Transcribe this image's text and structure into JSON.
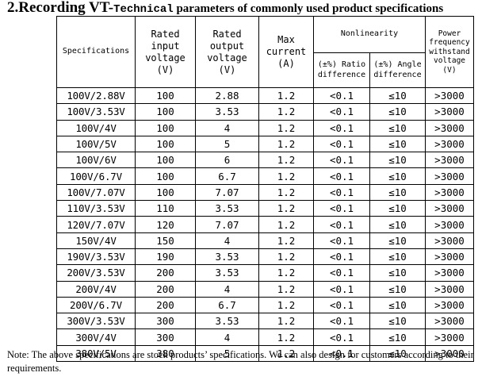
{
  "heading": {
    "number_title": "2.Recording VT",
    "dash": "-",
    "mono_word": "Technical",
    "rest": " parameters of commonly used product specifications"
  },
  "table": {
    "headers": {
      "specifications": "Specifications",
      "rated_input_voltage": "Rated input voltage (V)",
      "rated_output_voltage": "Rated output voltage (V)",
      "max_current": "Max current (A)",
      "nonlinearity": "Nonlinearity",
      "ratio_difference": "(±%) Ratio difference",
      "angle_difference": "(±%) Angle difference",
      "power_frequency": "Power frequency withstand voltage (V)"
    },
    "rows": [
      {
        "spec": "100V/2.88V",
        "input": "100",
        "output": "2.88",
        "current": "1.2",
        "ratio": "<0.1",
        "angle": "≤10",
        "withstand": ">3000"
      },
      {
        "spec": "100V/3.53V",
        "input": "100",
        "output": "3.53",
        "current": "1.2",
        "ratio": "<0.1",
        "angle": "≤10",
        "withstand": ">3000"
      },
      {
        "spec": "100V/4V",
        "input": "100",
        "output": "4",
        "current": "1.2",
        "ratio": "<0.1",
        "angle": "≤10",
        "withstand": ">3000"
      },
      {
        "spec": "100V/5V",
        "input": "100",
        "output": "5",
        "current": "1.2",
        "ratio": "<0.1",
        "angle": "≤10",
        "withstand": ">3000"
      },
      {
        "spec": "100V/6V",
        "input": "100",
        "output": "6",
        "current": "1.2",
        "ratio": "<0.1",
        "angle": "≤10",
        "withstand": ">3000"
      },
      {
        "spec": "100V/6.7V",
        "input": "100",
        "output": "6.7",
        "current": "1.2",
        "ratio": "<0.1",
        "angle": "≤10",
        "withstand": ">3000"
      },
      {
        "spec": "100V/7.07V",
        "input": "100",
        "output": "7.07",
        "current": "1.2",
        "ratio": "<0.1",
        "angle": "≤10",
        "withstand": ">3000"
      },
      {
        "spec": "110V/3.53V",
        "input": "110",
        "output": "3.53",
        "current": "1.2",
        "ratio": "<0.1",
        "angle": "≤10",
        "withstand": ">3000"
      },
      {
        "spec": "120V/7.07V",
        "input": "120",
        "output": "7.07",
        "current": "1.2",
        "ratio": "<0.1",
        "angle": "≤10",
        "withstand": ">3000"
      },
      {
        "spec": "150V/4V",
        "input": "150",
        "output": "4",
        "current": "1.2",
        "ratio": "<0.1",
        "angle": "≤10",
        "withstand": ">3000"
      },
      {
        "spec": "190V/3.53V",
        "input": "190",
        "output": "3.53",
        "current": "1.2",
        "ratio": "<0.1",
        "angle": "≤10",
        "withstand": ">3000"
      },
      {
        "spec": "200V/3.53V",
        "input": "200",
        "output": "3.53",
        "current": "1.2",
        "ratio": "<0.1",
        "angle": "≤10",
        "withstand": ">3000"
      },
      {
        "spec": "200V/4V",
        "input": "200",
        "output": "4",
        "current": "1.2",
        "ratio": "<0.1",
        "angle": "≤10",
        "withstand": ">3000"
      },
      {
        "spec": "200V/6.7V",
        "input": "200",
        "output": "6.7",
        "current": "1.2",
        "ratio": "<0.1",
        "angle": "≤10",
        "withstand": ">3000"
      },
      {
        "spec": "300V/3.53V",
        "input": "300",
        "output": "3.53",
        "current": "1.2",
        "ratio": "<0.1",
        "angle": "≤10",
        "withstand": ">3000"
      },
      {
        "spec": "300V/4V",
        "input": "300",
        "output": "4",
        "current": "1.2",
        "ratio": "<0.1",
        "angle": "≤10",
        "withstand": ">3000"
      },
      {
        "spec": "380V/5V",
        "input": "380",
        "output": "5",
        "current": "1.2",
        "ratio": "<0.1",
        "angle": "≤10",
        "withstand": ">3000"
      }
    ]
  },
  "note": "Note: The above specifications are stock products’ specifications. We can also design for customers according to their requirements."
}
